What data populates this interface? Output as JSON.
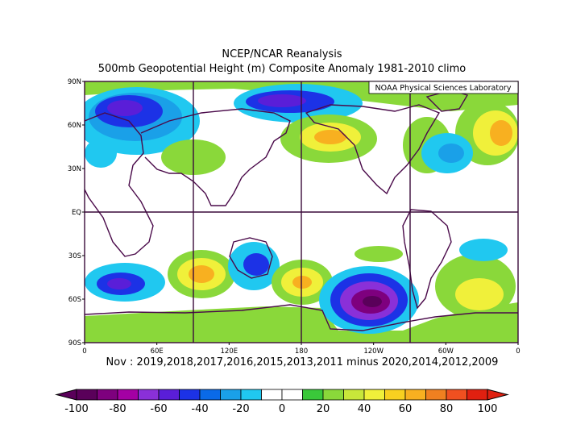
{
  "title": "NCEP/NCAR Reanalysis",
  "subtitle": "500mb Geopotential Height (m) Composite Anomaly 1981-2010 climo",
  "credit": "NOAA Physical Sciences Laboratory",
  "composite_label": "Nov : 2019,2018,2017,2016,2015,2013,2011 minus 2020,2014,2012,2009",
  "lat_labels": [
    "90N",
    "60N",
    "30N",
    "EQ",
    "30S",
    "60S",
    "90S"
  ],
  "lon_labels": [
    "0",
    "60E",
    "120E",
    "180",
    "120W",
    "60W",
    "0"
  ],
  "colorbar": {
    "tick_labels": [
      "-100",
      "-80",
      "-60",
      "-40",
      "-20",
      "0",
      "20",
      "40",
      "60",
      "80",
      "100"
    ],
    "colors": [
      "#5a005a",
      "#7e007e",
      "#a400a4",
      "#8a30d8",
      "#5a1ed8",
      "#1c32e6",
      "#0a6ae8",
      "#1aa0e8",
      "#20c8f0",
      "#ffffff",
      "#ffffff",
      "#3ac83a",
      "#8ad83a",
      "#c8e63a",
      "#f0f03a",
      "#f8d020",
      "#f8b020",
      "#f08020",
      "#f05020",
      "#e02010"
    ]
  }
}
